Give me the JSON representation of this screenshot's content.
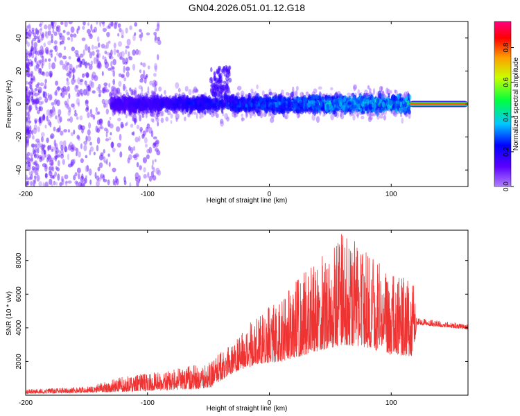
{
  "figure_title": "GN04.2026.051.01.12.G18",
  "chart_data": [
    {
      "type": "heatmap",
      "description": "Spectrogram of received signal vs height of straight line",
      "xlabel": "Height of straight line (km)",
      "ylabel": "Frequency (Hz)",
      "xlim": [
        -200,
        163
      ],
      "ylim": [
        -50,
        50
      ],
      "xticks": [
        -200,
        -100,
        0,
        100
      ],
      "yticks": [
        -40,
        -20,
        0,
        20,
        40
      ],
      "colorbar": {
        "label": "Normalized spectral amplitude",
        "range": [
          0.0,
          0.95
        ],
        "ticks": [
          0.0,
          0.2,
          0.4,
          0.6,
          0.8
        ],
        "colormap": "rainbow (purple→blue→cyan→green→yellow→orange→red→magenta)"
      },
      "features": {
        "noise_region_x": [
          -200,
          -100
        ],
        "scatter_band_x": [
          -130,
          115
        ],
        "scatter_band_center_hz": 0,
        "scatter_band_halfwidth_hz": 12,
        "bump_near_x": -40,
        "bump_peak_hz": 22,
        "coherent_line_x": [
          115,
          163
        ],
        "coherent_line_hz": 0
      }
    },
    {
      "type": "line",
      "xlabel": "Height of straight line (km)",
      "ylabel": "SNR (10 * v/v)",
      "xlim": [
        -200,
        163
      ],
      "ylim": [
        0,
        9800
      ],
      "xticks": [
        -200,
        -100,
        0,
        100
      ],
      "yticks": [
        2000,
        4000,
        6000,
        8000
      ],
      "color": "#ee3333",
      "series_envelope": [
        {
          "x": -200,
          "base": 100,
          "peak": 350
        },
        {
          "x": -150,
          "base": 150,
          "peak": 500
        },
        {
          "x": -120,
          "base": 200,
          "peak": 1100
        },
        {
          "x": -80,
          "base": 300,
          "peak": 1500
        },
        {
          "x": -50,
          "base": 400,
          "peak": 2000
        },
        {
          "x": -28,
          "base": 1400,
          "peak": 3200
        },
        {
          "x": -10,
          "base": 1800,
          "peak": 5000
        },
        {
          "x": 10,
          "base": 2000,
          "peak": 5800
        },
        {
          "x": 40,
          "base": 2600,
          "peak": 8200
        },
        {
          "x": 60,
          "base": 3000,
          "peak": 9800
        },
        {
          "x": 80,
          "base": 2800,
          "peak": 8500
        },
        {
          "x": 100,
          "base": 2400,
          "peak": 7200
        },
        {
          "x": 118,
          "base": 2300,
          "peak": 6800
        },
        {
          "x": 121,
          "base": 4200,
          "peak": 4600
        },
        {
          "x": 163,
          "base": 3900,
          "peak": 4200
        }
      ]
    }
  ]
}
